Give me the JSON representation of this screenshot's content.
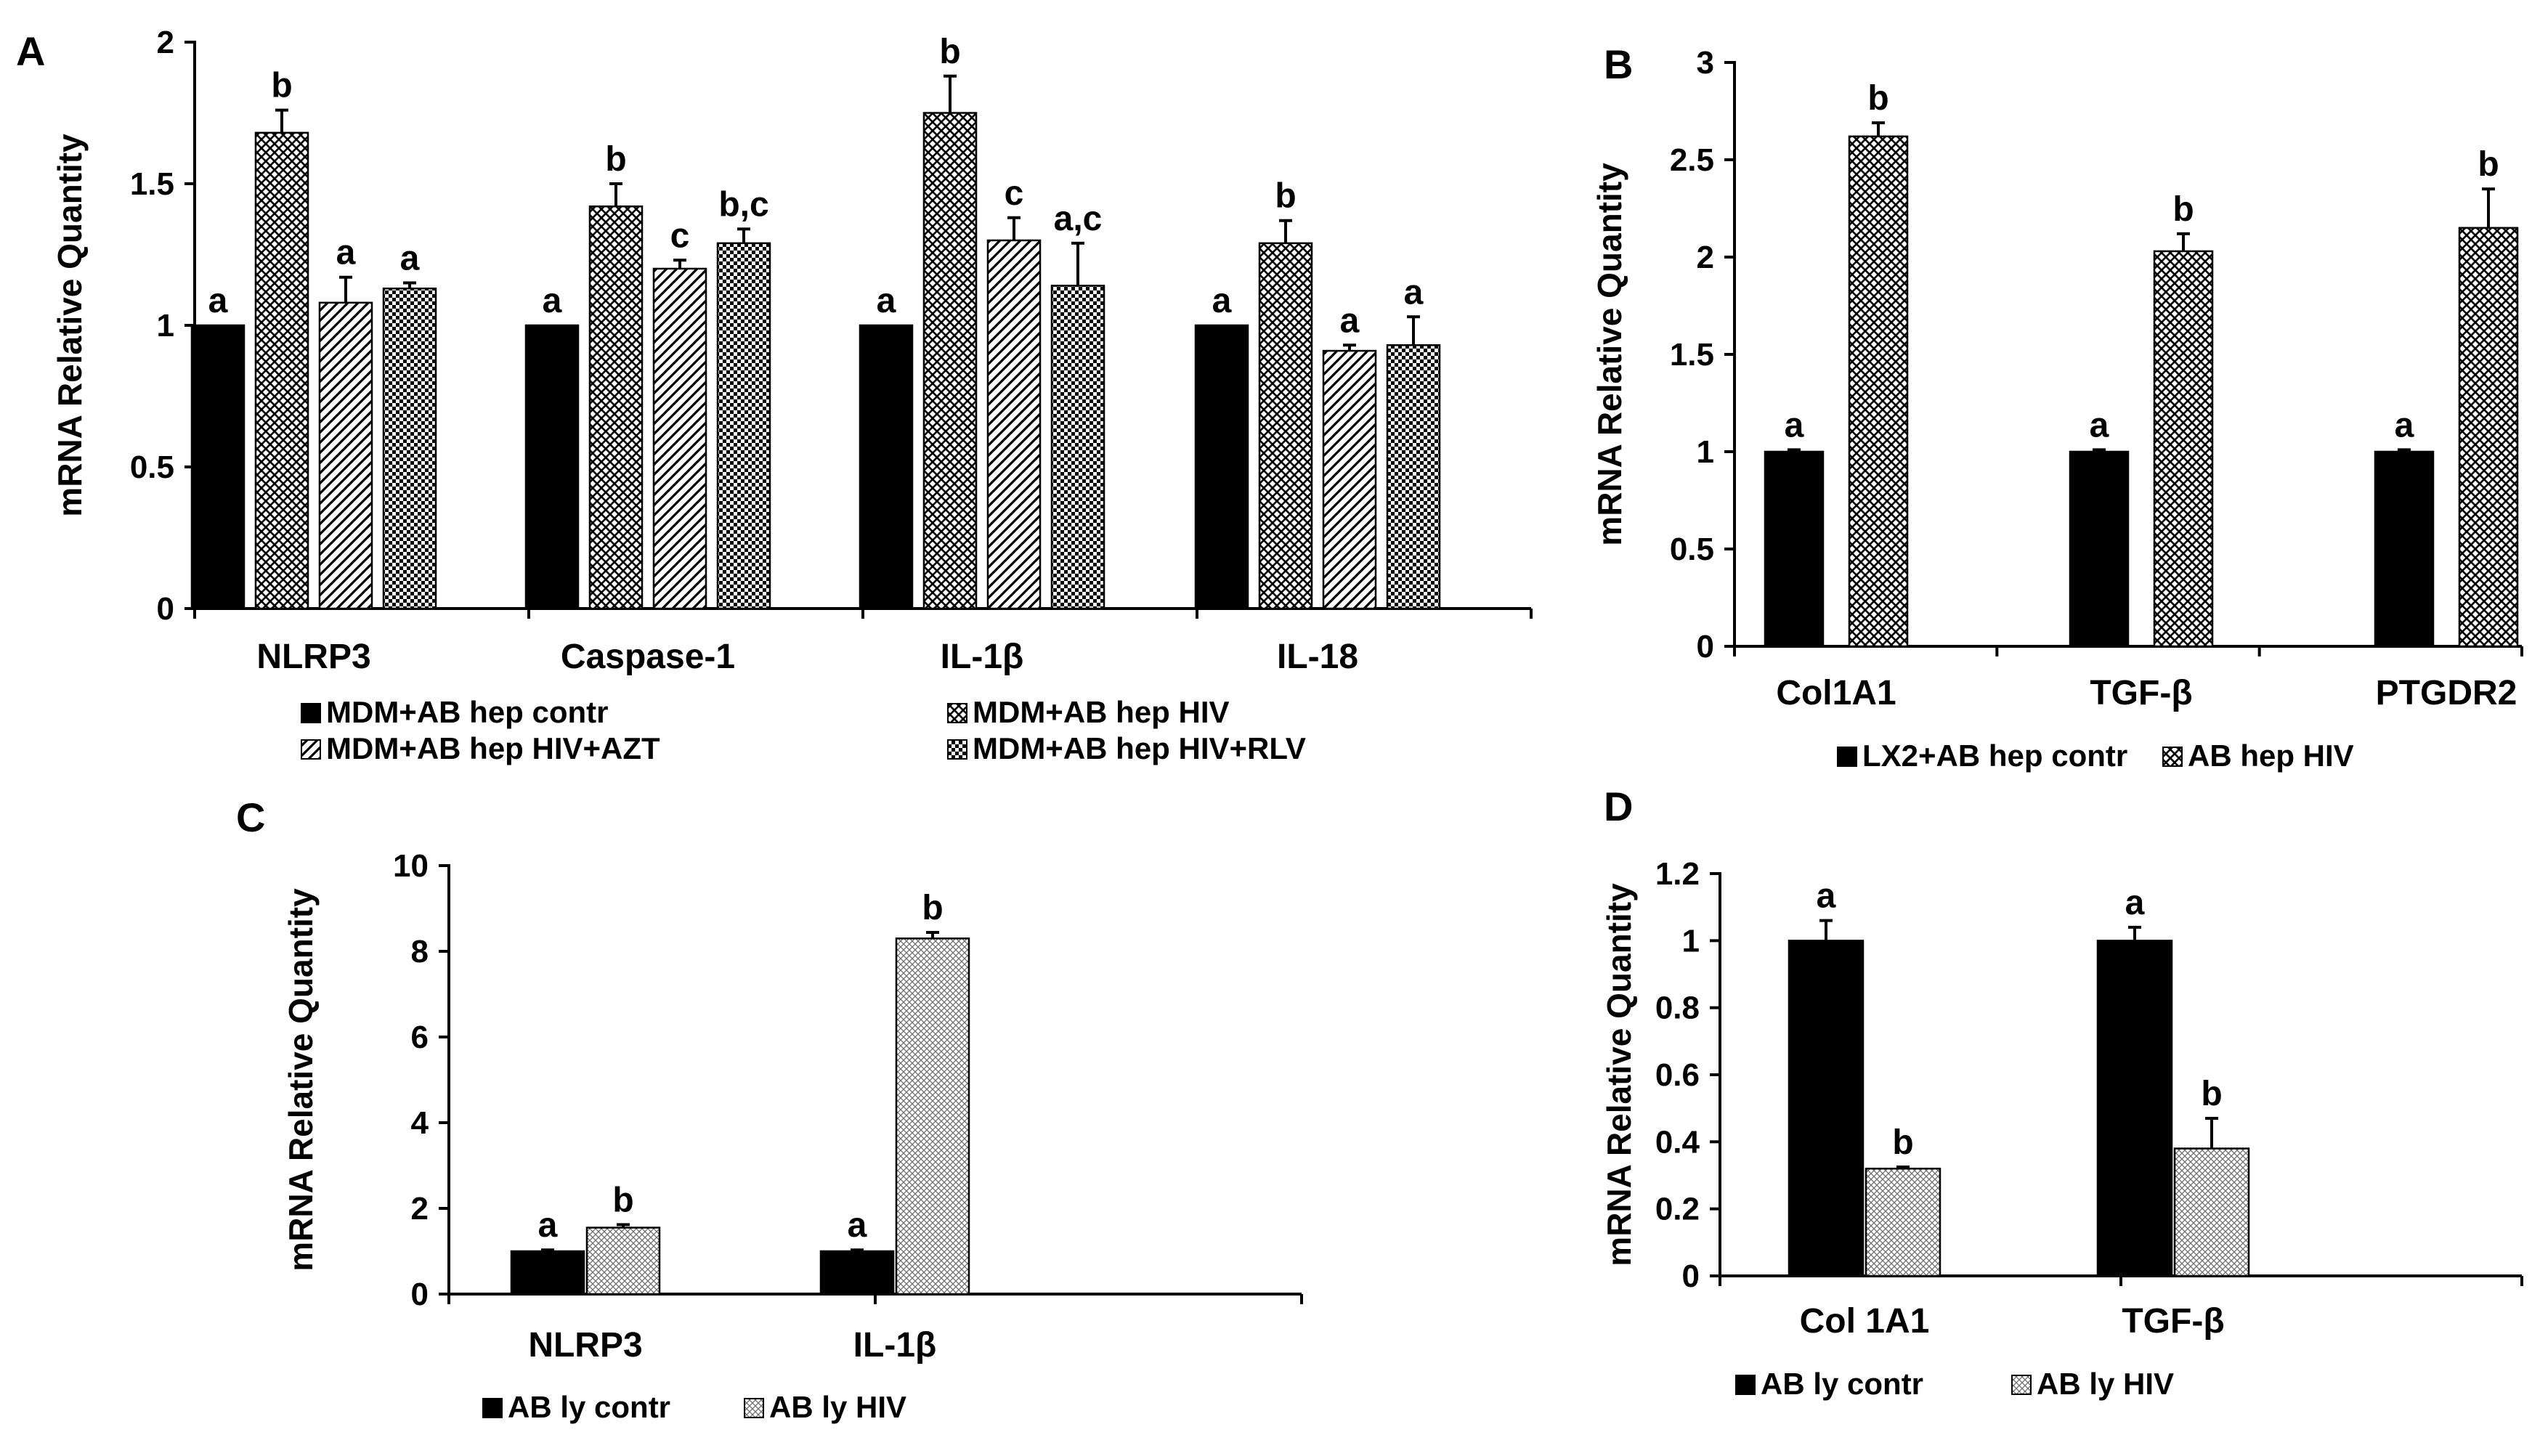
{
  "chart_data": [
    {
      "panel": "A",
      "type": "bar",
      "ylabel": "mRNA Relative Quantity",
      "ylim": [
        0,
        2
      ],
      "yticks": [
        "0",
        "0.5",
        "1",
        "1.5",
        "2"
      ],
      "categories": [
        "NLRP3",
        "Caspase-1",
        "IL-1β",
        "IL-18"
      ],
      "series": [
        {
          "name": "MDM+AB hep contr",
          "pattern": "solid",
          "values": [
            1.0,
            1.0,
            1.0,
            1.0
          ],
          "errors": [
            0.0,
            0.0,
            0.0,
            0.0
          ],
          "letters": [
            "a",
            "a",
            "a",
            "a"
          ]
        },
        {
          "name": "MDM+AB hep HIV",
          "pattern": "cross",
          "values": [
            1.68,
            1.42,
            1.75,
            1.29
          ],
          "errors": [
            0.08,
            0.08,
            0.13,
            0.08
          ],
          "letters": [
            "b",
            "b",
            "b",
            "b"
          ]
        },
        {
          "name": "MDM+AB hep HIV+AZT",
          "pattern": "diag",
          "values": [
            1.08,
            1.2,
            1.3,
            0.91
          ],
          "errors": [
            0.09,
            0.03,
            0.08,
            0.02
          ],
          "letters": [
            "a",
            "c",
            "c",
            "a"
          ]
        },
        {
          "name": "MDM+AB hep HIV+RLV",
          "pattern": "checker",
          "values": [
            1.13,
            1.29,
            1.14,
            0.93
          ],
          "errors": [
            0.02,
            0.05,
            0.15,
            0.1
          ],
          "letters": [
            "a",
            "b,c",
            "a,c",
            "a"
          ]
        }
      ]
    },
    {
      "panel": "B",
      "type": "bar",
      "ylabel": "mRNA Relative Quantity",
      "ylim": [
        0,
        3
      ],
      "yticks": [
        "0",
        "0.5",
        "1",
        "1.5",
        "2",
        "2.5",
        "3"
      ],
      "categories": [
        "Col1A1",
        "TGF-β",
        "PTGDR2"
      ],
      "series": [
        {
          "name": "LX2+AB hep contr",
          "pattern": "solid",
          "values": [
            1.0,
            1.0,
            1.0
          ],
          "errors": [
            0.01,
            0.01,
            0.01
          ],
          "letters": [
            "a",
            "a",
            "a"
          ]
        },
        {
          "name": "AB hep HIV",
          "pattern": "cross",
          "values": [
            2.62,
            2.03,
            2.15
          ],
          "errors": [
            0.07,
            0.09,
            0.2
          ],
          "letters": [
            "b",
            "b",
            "b"
          ]
        }
      ]
    },
    {
      "panel": "C",
      "type": "bar",
      "ylabel": "mRNA Relative Quantity",
      "ylim": [
        0,
        10
      ],
      "yticks": [
        "0",
        "2",
        "4",
        "6",
        "8",
        "10"
      ],
      "categories": [
        "NLRP3",
        "IL-1β"
      ],
      "series": [
        {
          "name": "AB ly contr",
          "pattern": "solid",
          "values": [
            1.0,
            1.0
          ],
          "errors": [
            0.03,
            0.03
          ],
          "letters": [
            "a",
            "a"
          ]
        },
        {
          "name": "AB ly HIV",
          "pattern": "fine",
          "values": [
            1.55,
            8.3
          ],
          "errors": [
            0.07,
            0.14
          ],
          "letters": [
            "b",
            "b"
          ]
        }
      ]
    },
    {
      "panel": "D",
      "type": "bar",
      "ylabel": "mRNA Relative Quantity",
      "ylim": [
        0,
        1.2
      ],
      "yticks": [
        "0",
        "0.2",
        "0.4",
        "0.6",
        "0.8",
        "1",
        "1.2"
      ],
      "categories": [
        "Col 1A1",
        "TGF-β"
      ],
      "series": [
        {
          "name": "AB ly contr",
          "pattern": "solid",
          "values": [
            1.0,
            1.0
          ],
          "errors": [
            0.06,
            0.04
          ],
          "letters": [
            "a",
            "a"
          ]
        },
        {
          "name": "AB ly HIV",
          "pattern": "fine",
          "values": [
            0.32,
            0.38
          ],
          "errors": [
            0.005,
            0.09
          ],
          "letters": [
            "b",
            "b"
          ]
        }
      ]
    }
  ]
}
